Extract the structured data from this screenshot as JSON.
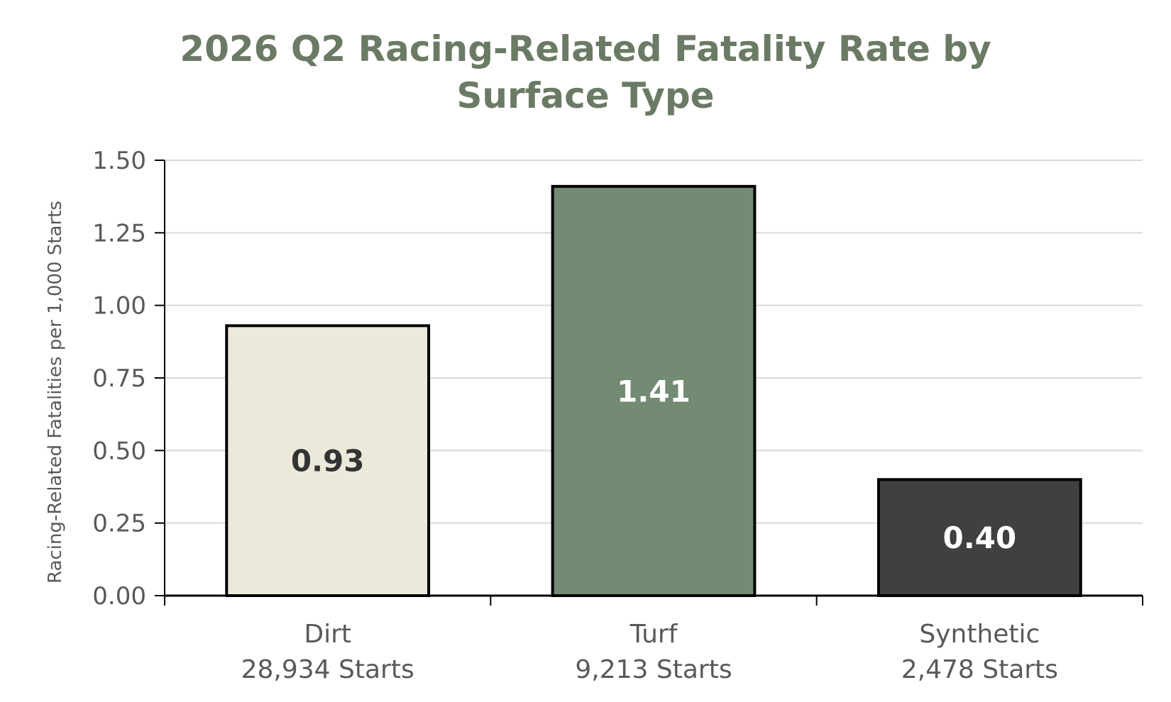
{
  "chart_data": {
    "type": "bar",
    "title": [
      "2026 Q2 Racing-Related Fatality Rate by",
      "Surface Type"
    ],
    "ylabel": "Racing-Related Fatalities per 1,000 Starts",
    "ylim": [
      0,
      1.5
    ],
    "yticks": [
      "0.00",
      "0.25",
      "0.50",
      "0.75",
      "1.00",
      "1.25",
      "1.50"
    ],
    "ytick_values": [
      0,
      0.25,
      0.5,
      0.75,
      1.0,
      1.25,
      1.5
    ],
    "grid": true,
    "categories": [
      "Dirt",
      "Turf",
      "Synthetic"
    ],
    "category_sublabels": [
      "28,934 Starts",
      "9,213 Starts",
      "2,478 Starts"
    ],
    "values": [
      0.93,
      1.41,
      0.4
    ],
    "value_labels": [
      "0.93",
      "1.41",
      "0.40"
    ],
    "bar_colors": [
      "#ece9da",
      "#738a73",
      "#404040"
    ],
    "label_colors": [
      "#333333",
      "#ffffff",
      "#ffffff"
    ],
    "gridline_color": "#d9d9d9",
    "title_color": "#6b7a64",
    "bar_outline_color": "#000000"
  }
}
